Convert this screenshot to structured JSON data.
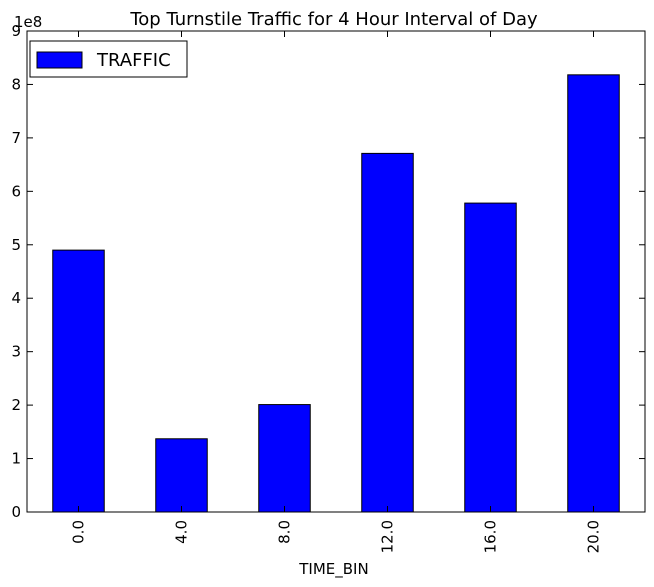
{
  "chart_data": {
    "type": "bar",
    "title": "Top Turnstile Traffic for 4 Hour Interval of Day",
    "xlabel": "TIME_BIN",
    "ylabel": "",
    "y_offset_label": "1e8",
    "y_scale": 100000000,
    "categories": [
      "0.0",
      "4.0",
      "8.0",
      "12.0",
      "16.0",
      "20.0"
    ],
    "series": [
      {
        "name": "TRAFFIC",
        "color": "#0000ff",
        "values": [
          490000000,
          137000000,
          201000000,
          671000000,
          578000000,
          818000000
        ]
      }
    ],
    "ylim": [
      0,
      900000000
    ],
    "yticks": [
      "0",
      "1",
      "2",
      "3",
      "4",
      "5",
      "6",
      "7",
      "8",
      "9"
    ],
    "grid": false,
    "legend": "top-left",
    "x_tick_rotation": "vertical"
  }
}
